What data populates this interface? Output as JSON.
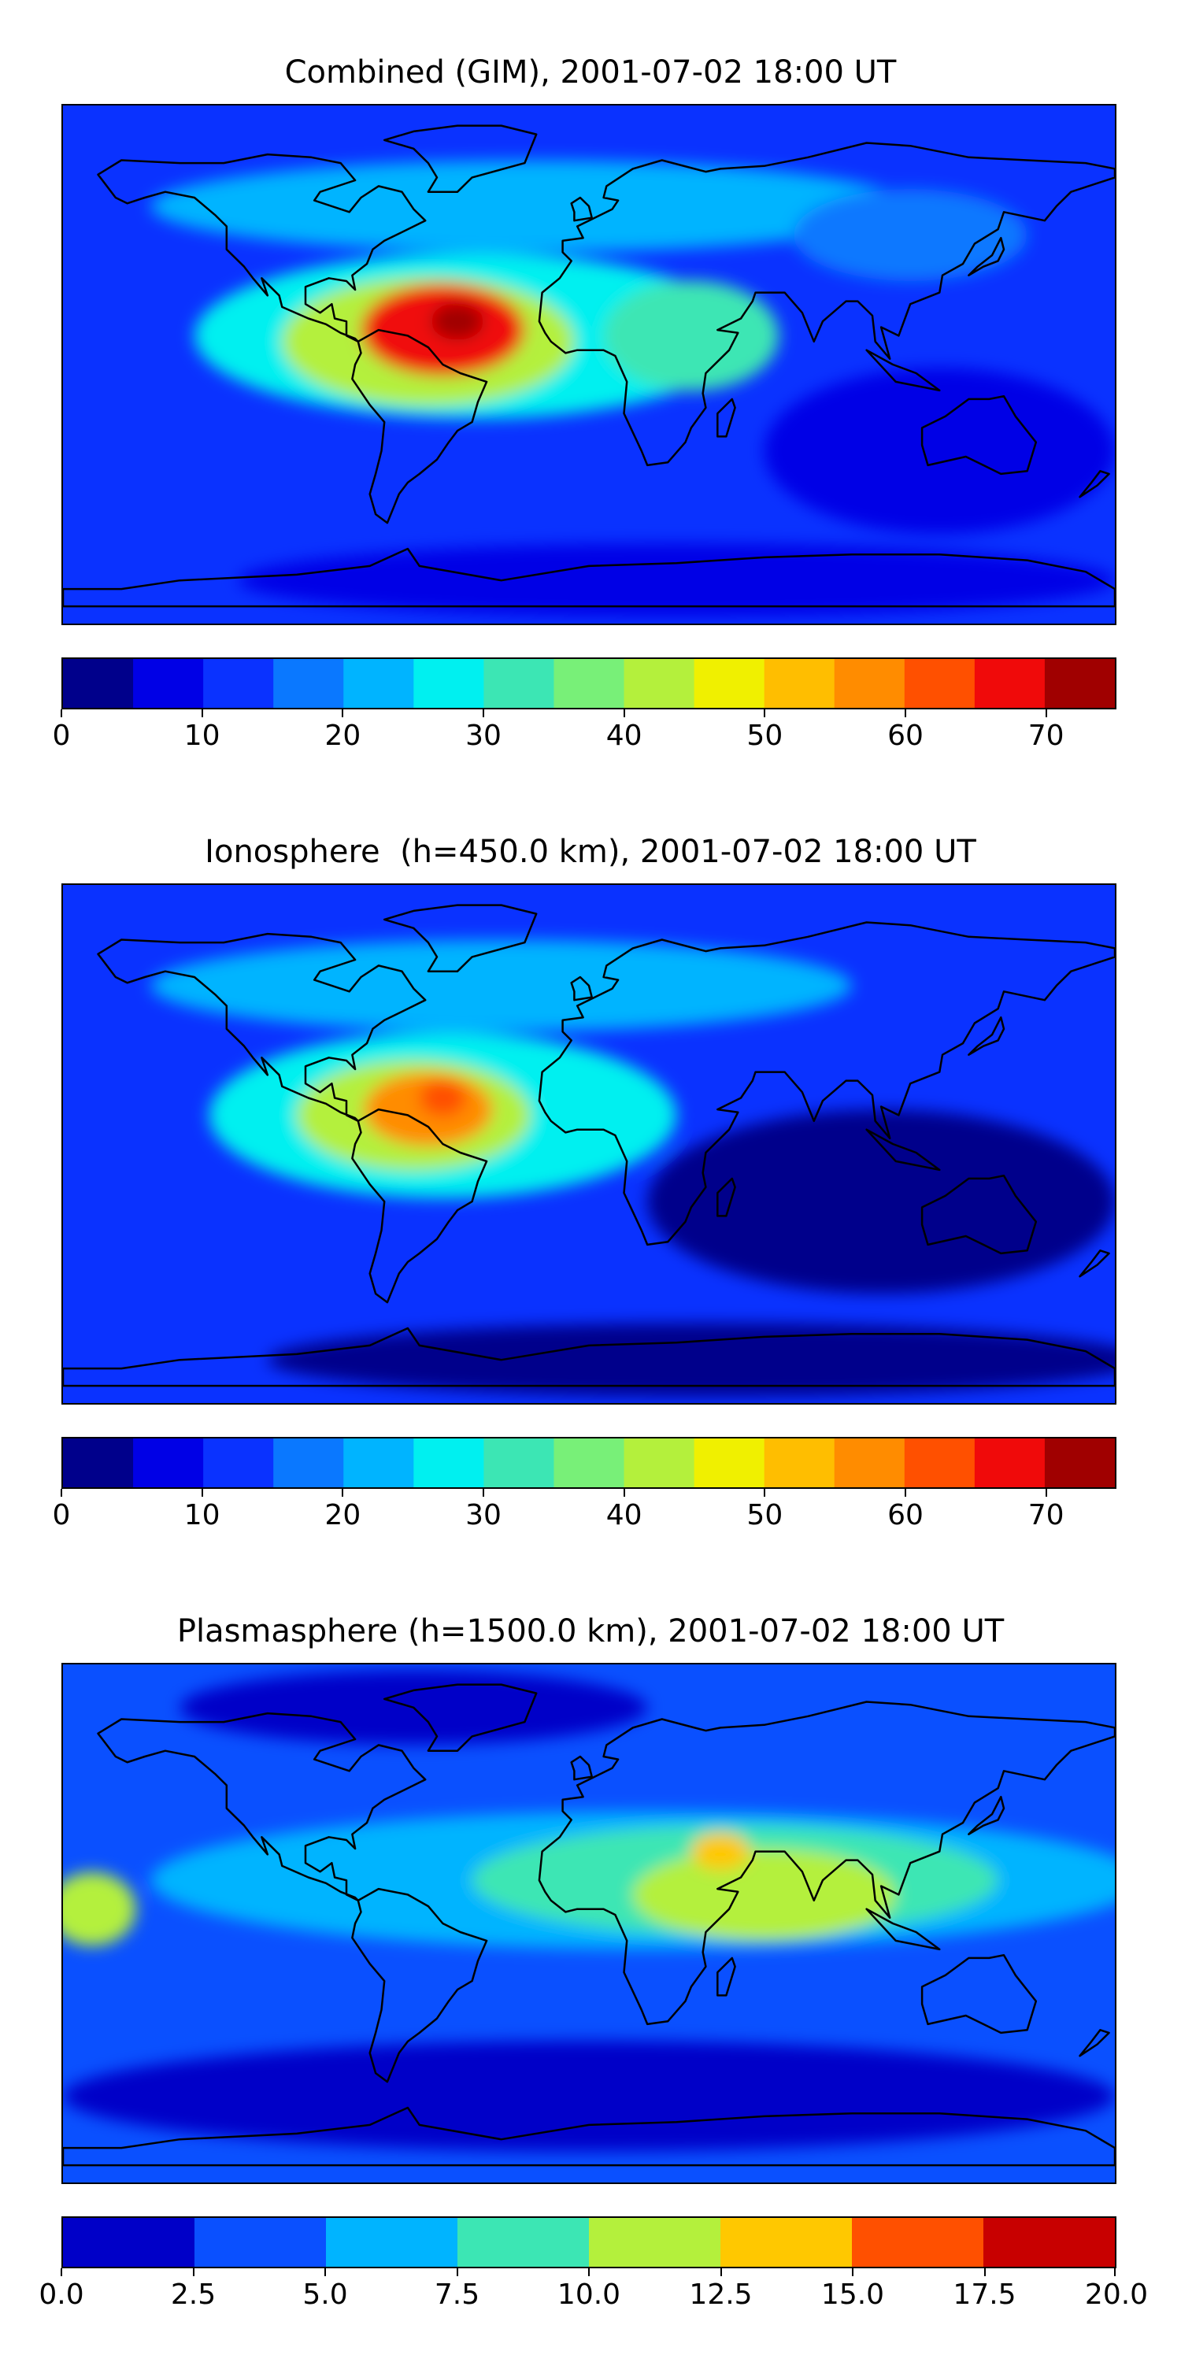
{
  "chart_data": [
    {
      "type": "heatmap",
      "title": "Combined (GIM), 2001-07-02 18:00 UT",
      "colorbar": {
        "vmin": 0,
        "vmax": 75,
        "step": 5,
        "tick_values": [
          0,
          10,
          20,
          30,
          40,
          50,
          60,
          70
        ],
        "tick_labels": [
          "0",
          "10",
          "20",
          "30",
          "40",
          "50",
          "60",
          "70"
        ],
        "colors": [
          "#00008b",
          "#0000e6",
          "#0a32ff",
          "#0a78ff",
          "#00b4ff",
          "#00f0f0",
          "#3ce6b4",
          "#78f078",
          "#b4f03c",
          "#f0f000",
          "#ffbe00",
          "#ff8c00",
          "#ff5000",
          "#f00a0a",
          "#a00000"
        ]
      },
      "map_features": {
        "background_level": 2,
        "blobs": [
          {
            "name": "north-band",
            "lon": -20,
            "lat": 55,
            "sx": 130,
            "sy": 10,
            "level": 4
          },
          {
            "name": "asia-band",
            "lon": 110,
            "lat": 45,
            "sx": 40,
            "sy": 10,
            "level": 3
          },
          {
            "name": "tropical-band",
            "lon": -40,
            "lat": 10,
            "sx": 95,
            "sy": 18,
            "level": 5
          },
          {
            "name": "atlantic-core",
            "lon": -55,
            "lat": 8,
            "sx": 50,
            "sy": 14,
            "level": 8
          },
          {
            "name": "samerica-max",
            "lon": -50,
            "lat": 12,
            "sx": 28,
            "sy": 10,
            "level": 13
          },
          {
            "name": "peak",
            "lon": -45,
            "lat": 15,
            "sx": 9,
            "sy": 4,
            "level": 14
          },
          {
            "name": "east-africa",
            "lon": 35,
            "lat": 10,
            "sx": 30,
            "sy": 12,
            "level": 6
          },
          {
            "name": "south-pacific-low",
            "lon": 120,
            "lat": -30,
            "sx": 60,
            "sy": 18,
            "level": 1
          },
          {
            "name": "polar-low",
            "lon": 30,
            "lat": -75,
            "sx": 150,
            "sy": 8,
            "level": 1
          }
        ]
      }
    },
    {
      "type": "heatmap",
      "title": "Ionosphere  (h=450.0 km), 2001-07-02 18:00 UT",
      "colorbar": {
        "vmin": 0,
        "vmax": 75,
        "step": 5,
        "tick_values": [
          0,
          10,
          20,
          30,
          40,
          50,
          60,
          70
        ],
        "tick_labels": [
          "0",
          "10",
          "20",
          "30",
          "40",
          "50",
          "60",
          "70"
        ],
        "colors": [
          "#00008b",
          "#0000e6",
          "#0a32ff",
          "#0a78ff",
          "#00b4ff",
          "#00f0f0",
          "#3ce6b4",
          "#78f078",
          "#b4f03c",
          "#f0f000",
          "#ffbe00",
          "#ff8c00",
          "#ff5000",
          "#f00a0a",
          "#a00000"
        ]
      },
      "map_features": {
        "background_level": 2,
        "blobs": [
          {
            "name": "north-band",
            "lon": -30,
            "lat": 55,
            "sx": 120,
            "sy": 10,
            "level": 4
          },
          {
            "name": "tropical-band",
            "lon": -50,
            "lat": 10,
            "sx": 80,
            "sy": 18,
            "level": 5
          },
          {
            "name": "atlantic-core",
            "lon": -60,
            "lat": 10,
            "sx": 40,
            "sy": 12,
            "level": 8
          },
          {
            "name": "samerica-max",
            "lon": -55,
            "lat": 12,
            "sx": 22,
            "sy": 8,
            "level": 11
          },
          {
            "name": "peak",
            "lon": -50,
            "lat": 16,
            "sx": 8,
            "sy": 4,
            "level": 12
          },
          {
            "name": "south-low",
            "lon": 100,
            "lat": -20,
            "sx": 80,
            "sy": 20,
            "level": 0
          },
          {
            "name": "polar-low",
            "lon": 40,
            "lat": -75,
            "sx": 150,
            "sy": 8,
            "level": 0
          }
        ]
      }
    },
    {
      "type": "heatmap",
      "title": "Plasmasphere (h=1500.0 km), 2001-07-02 18:00 UT",
      "colorbar": {
        "vmin": 0,
        "vmax": 20,
        "step": 2.5,
        "tick_values": [
          0,
          2.5,
          5,
          7.5,
          10,
          12.5,
          15,
          17.5,
          20
        ],
        "tick_labels": [
          "0.0",
          "2.5",
          "5.0",
          "7.5",
          "10.0",
          "12.5",
          "15.0",
          "17.5",
          "20.0"
        ],
        "colors": [
          "#0000c8",
          "#0a50ff",
          "#00b4ff",
          "#3ce6b4",
          "#b4f03c",
          "#ffc800",
          "#ff5000",
          "#c80000"
        ]
      },
      "map_features": {
        "background_level": 1,
        "blobs": [
          {
            "name": "equatorial-band",
            "lon": 20,
            "lat": 15,
            "sx": 170,
            "sy": 15,
            "level": 2
          },
          {
            "name": "tropical-core",
            "lon": 50,
            "lat": 15,
            "sx": 90,
            "sy": 12,
            "level": 3
          },
          {
            "name": "india-max",
            "lon": 60,
            "lat": 10,
            "sx": 45,
            "sy": 10,
            "level": 4
          },
          {
            "name": "arabia-peak",
            "lon": 45,
            "lat": 25,
            "sx": 10,
            "sy": 4,
            "level": 5
          },
          {
            "name": "pacific-west",
            "lon": -170,
            "lat": 5,
            "sx": 15,
            "sy": 8,
            "level": 4
          },
          {
            "name": "north-low",
            "lon": -60,
            "lat": 75,
            "sx": 80,
            "sy": 8,
            "level": 0
          },
          {
            "name": "south-low",
            "lon": 0,
            "lat": -60,
            "sx": 180,
            "sy": 12,
            "level": 0
          }
        ]
      }
    }
  ]
}
